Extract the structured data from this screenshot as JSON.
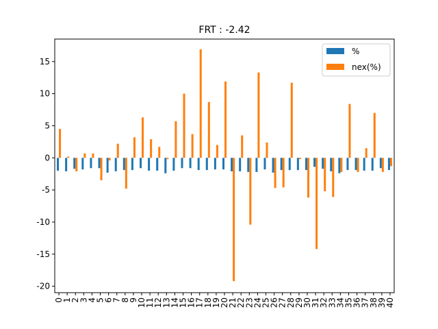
{
  "chart_data": {
    "type": "bar",
    "title": "FRT : -2.42",
    "xlabel": "",
    "ylabel": "",
    "categories": [
      "0",
      "1",
      "2",
      "3",
      "4",
      "5",
      "6",
      "7",
      "8",
      "9",
      "10",
      "11",
      "12",
      "13",
      "14",
      "15",
      "16",
      "17",
      "18",
      "19",
      "20",
      "21",
      "22",
      "23",
      "24",
      "25",
      "26",
      "27",
      "28",
      "29",
      "30",
      "31",
      "32",
      "33",
      "34",
      "35",
      "36",
      "37",
      "38",
      "39",
      "40"
    ],
    "series": [
      {
        "name": "%",
        "color": "#1f77b4",
        "values": [
          -2.0,
          -2.1,
          -1.7,
          -1.8,
          -1.6,
          -1.6,
          -2.3,
          -2.1,
          -1.9,
          -1.9,
          -1.6,
          -2.0,
          -2.0,
          -2.4,
          -2.0,
          -1.6,
          -1.6,
          -1.9,
          -1.9,
          -1.8,
          -1.8,
          -2.1,
          -2.1,
          -2.2,
          -2.2,
          -1.8,
          -2.3,
          -1.9,
          -1.9,
          -1.9,
          -1.9,
          -1.4,
          -1.7,
          -2.1,
          -2.4,
          -1.9,
          -1.9,
          -2.0,
          -2.0,
          -1.6,
          -1.9
        ]
      },
      {
        "name": "nex(%)",
        "color": "#ff7f0e",
        "values": [
          4.5,
          0.2,
          -2.1,
          0.7,
          0.7,
          -3.5,
          -0.4,
          2.2,
          -4.8,
          3.2,
          6.3,
          2.9,
          1.7,
          -0.2,
          5.7,
          10.0,
          3.7,
          16.9,
          8.7,
          2.0,
          11.9,
          -19.2,
          3.5,
          -10.4,
          13.3,
          2.4,
          -4.7,
          -4.6,
          11.7,
          -0.2,
          -6.2,
          -14.2,
          -5.2,
          -6.1,
          -2.2,
          8.4,
          -2.2,
          1.5,
          7.0,
          -2.2,
          -1.3
        ]
      }
    ],
    "ylim": [
      -21,
      18.5
    ],
    "yticks": [
      -20,
      -15,
      -10,
      -5,
      0,
      5,
      10,
      15
    ],
    "legend": "top-right",
    "grid": false
  }
}
